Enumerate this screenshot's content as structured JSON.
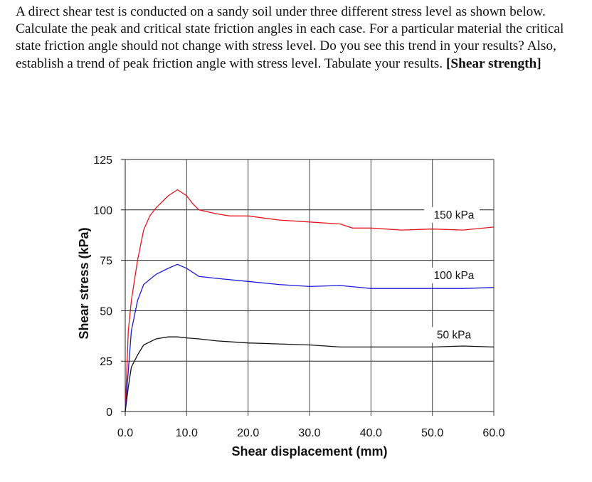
{
  "question": {
    "text": "A direct shear test is conducted on a sandy soil under three different stress level as shown below. Calculate the peak and critical state friction angles in each case. For a particular material the critical state friction angle should not change with stress level. Do you see this trend in your results? Also, establish a trend of peak friction angle with stress level. Tabulate your results. ",
    "tag": "[Shear strength]"
  },
  "chart_data": {
    "type": "line",
    "title": "",
    "xlabel": "Shear displacement (mm)",
    "ylabel": "Shear stress (kPa)",
    "xlim": [
      0,
      60
    ],
    "ylim": [
      0,
      125
    ],
    "xticks": [
      "0.0",
      "10.0",
      "20.0",
      "30.0",
      "40.0",
      "50.0",
      "60.0"
    ],
    "yticks": [
      "0",
      "25",
      "50",
      "75",
      "100",
      "125"
    ],
    "grid": true,
    "legend": "inline labels at right end of each curve",
    "series": [
      {
        "name": "150 kPa",
        "color": "#e8141c",
        "x": [
          0,
          0.5,
          1,
          2,
          3,
          4,
          5,
          7,
          8.5,
          10,
          11,
          12,
          15,
          17,
          20,
          25,
          30,
          35,
          37,
          40,
          45,
          50,
          55,
          60
        ],
        "y": [
          0,
          40,
          55,
          75,
          90,
          97,
          101,
          107,
          110,
          107,
          103,
          100,
          98,
          97,
          97,
          95,
          94,
          93,
          91,
          91,
          90,
          90.5,
          90,
          91.5
        ]
      },
      {
        "name": "100 kPa",
        "color": "#1a1adc",
        "x": [
          0,
          0.5,
          1,
          2,
          3,
          5,
          7,
          8.5,
          10,
          12,
          15,
          20,
          25,
          30,
          35,
          40,
          45,
          50,
          55,
          60
        ],
        "y": [
          0,
          20,
          40,
          55,
          63,
          68,
          71,
          73,
          71,
          67,
          66,
          64.5,
          63,
          62,
          62.5,
          61,
          61,
          61,
          61,
          61.5
        ]
      },
      {
        "name": "50 kPa",
        "color": "#111111",
        "x": [
          0,
          0.5,
          1,
          2,
          3,
          5,
          7,
          8.5,
          10,
          12,
          15,
          20,
          25,
          30,
          35,
          40,
          45,
          50,
          55,
          60
        ],
        "y": [
          0,
          12,
          22,
          28,
          33,
          36,
          37,
          37,
          36.5,
          36,
          35,
          34,
          33.5,
          33,
          32,
          32,
          32,
          32,
          32.5,
          32
        ]
      }
    ]
  }
}
